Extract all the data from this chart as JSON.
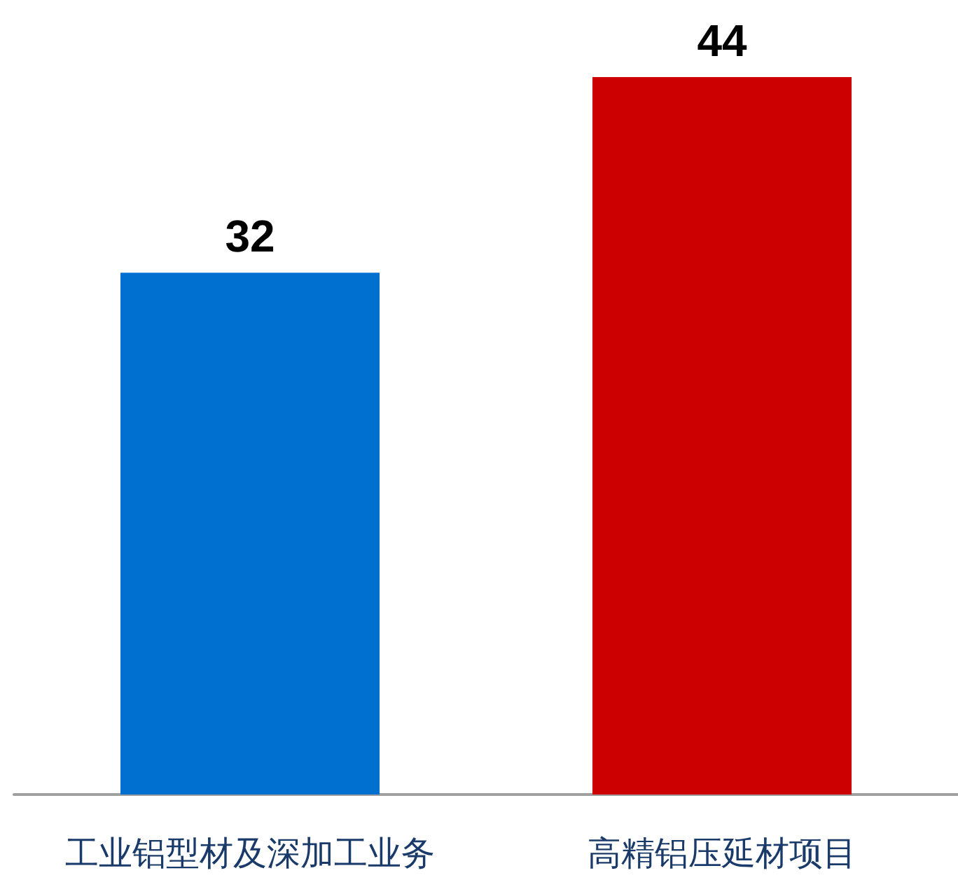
{
  "chart_data": {
    "type": "bar",
    "categories": [
      "工业铝型材及深加工业务",
      "高精铝压延材项目"
    ],
    "values": [
      32,
      44
    ],
    "colors": [
      "#0070d0",
      "#cc0000"
    ],
    "data_labels": true
  }
}
